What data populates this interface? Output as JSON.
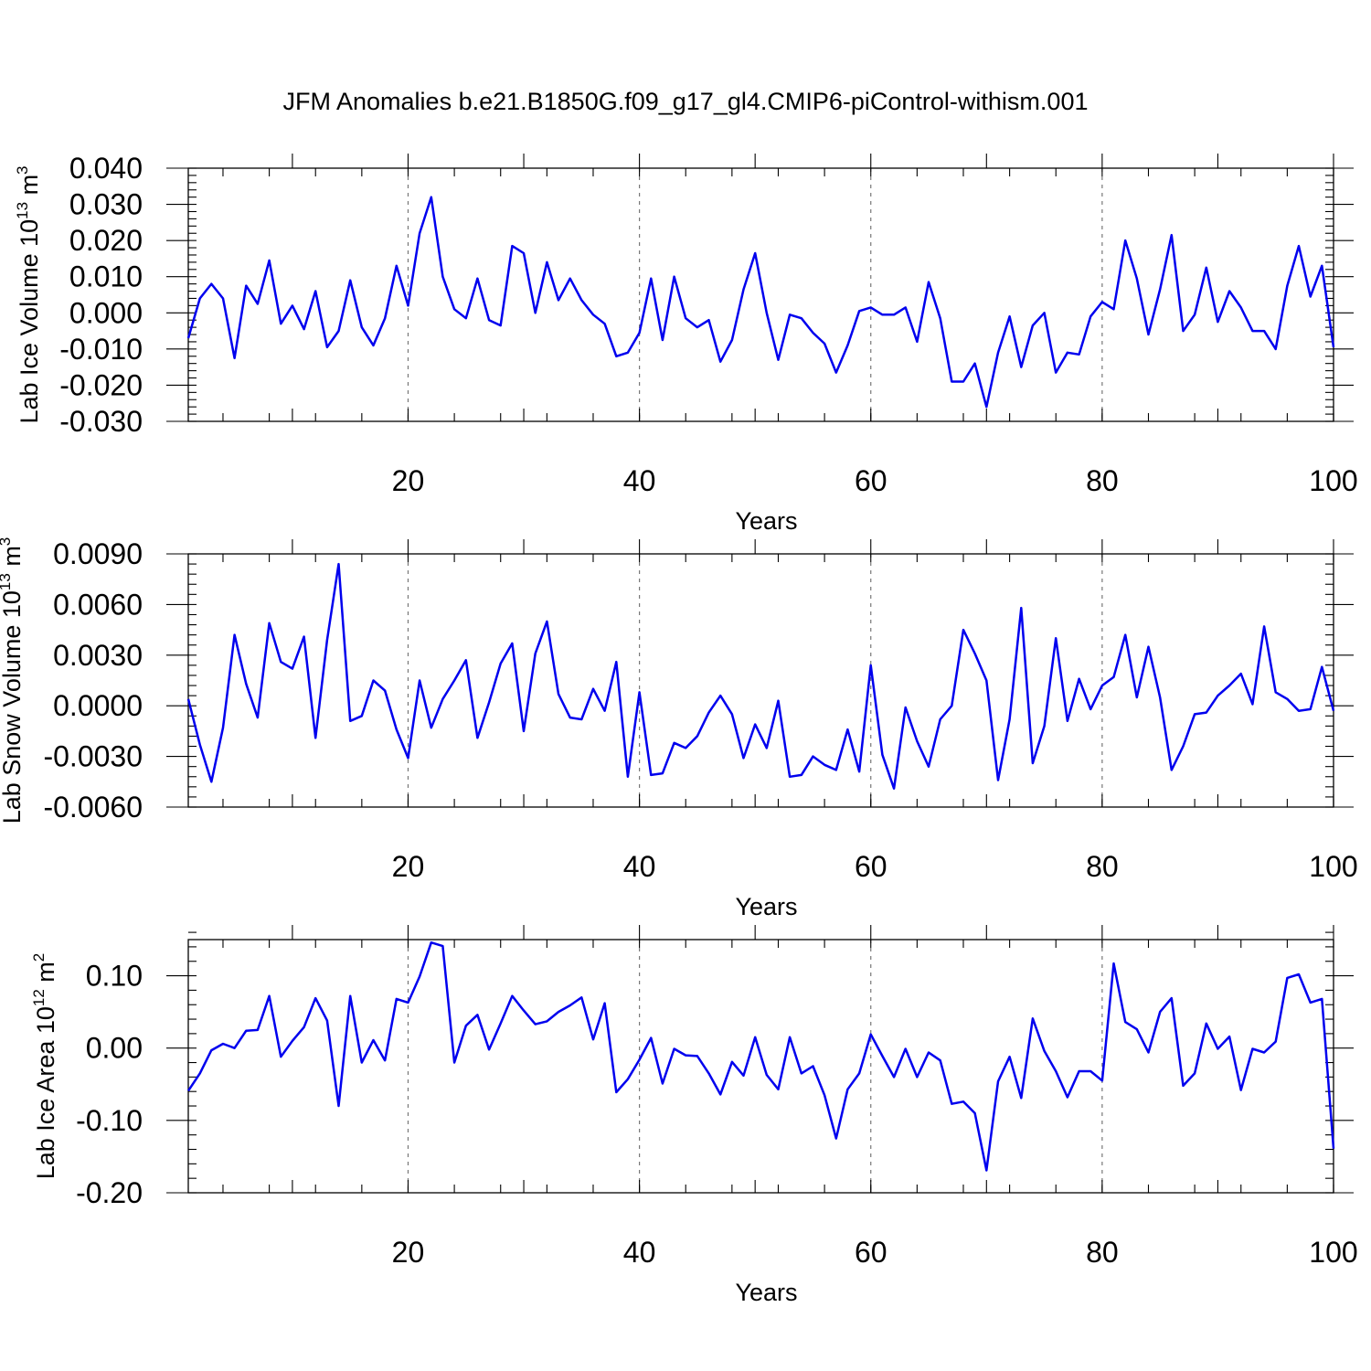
{
  "title": "JFM Anomalies b.e21.B1850G.f09_g17_gl4.CMIP6-piControl-withism.001",
  "colors": {
    "series": "#0000ee",
    "axes": "#000000",
    "grid": "#777777"
  },
  "chart_data": [
    {
      "type": "line",
      "ylabel": {
        "text": "Lab Ice Volume 10",
        "exp": "13",
        "unit": " m",
        "unit_exp": "3"
      },
      "xlabel": "Years",
      "xlim": [
        1,
        100
      ],
      "ylim": [
        -0.03,
        0.04
      ],
      "yticks": [
        -0.03,
        -0.02,
        -0.01,
        0.0,
        0.01,
        0.02,
        0.03,
        0.04
      ],
      "ytick_labels": [
        "-0.030",
        "-0.020",
        "-0.010",
        "0.000",
        "0.010",
        "0.020",
        "0.030",
        "0.040"
      ],
      "ytick_minor_step": 0.002,
      "xticks": [
        20,
        40,
        60,
        80,
        100
      ],
      "xtick_labels": [
        "20",
        "40",
        "60",
        "80",
        "100"
      ],
      "xtick_minor_step": 4,
      "grid_x": [
        20,
        40,
        60,
        80
      ],
      "x_start": 1,
      "values": [
        -0.007,
        0.004,
        0.008,
        0.004,
        -0.0125,
        0.0075,
        0.0025,
        0.0145,
        -0.003,
        0.002,
        -0.0045,
        0.006,
        -0.0095,
        -0.005,
        0.009,
        -0.004,
        -0.009,
        -0.0015,
        0.013,
        0.002,
        0.022,
        0.032,
        0.01,
        0.001,
        -0.0015,
        0.0095,
        -0.002,
        -0.0035,
        0.0185,
        0.0165,
        0.0,
        0.014,
        0.0035,
        0.0095,
        0.0035,
        -0.0005,
        -0.003,
        -0.012,
        -0.011,
        -0.0055,
        0.0095,
        -0.0075,
        0.01,
        -0.0015,
        -0.004,
        -0.002,
        -0.0135,
        -0.0075,
        0.0065,
        0.0165,
        0.0,
        -0.013,
        -0.0005,
        -0.0015,
        -0.0055,
        -0.0085,
        -0.0165,
        -0.009,
        0.0005,
        0.0015,
        -0.0005,
        -0.0005,
        0.0015,
        -0.008,
        0.0085,
        -0.0015,
        -0.019,
        -0.019,
        -0.014,
        -0.026,
        -0.011,
        -0.001,
        -0.015,
        -0.0035,
        0.0,
        -0.0165,
        -0.011,
        -0.0115,
        -0.001,
        0.003,
        0.001,
        0.02,
        0.0095,
        -0.006,
        0.0065,
        0.0215,
        -0.005,
        -0.0005,
        0.0125,
        -0.0025,
        0.006,
        0.0015,
        -0.005,
        -0.005,
        -0.01,
        0.0075,
        0.0185,
        0.0045,
        0.013,
        -0.0095
      ]
    },
    {
      "type": "line",
      "ylabel": {
        "text": "Lab Snow Volume 10",
        "exp": "13",
        "unit": " m",
        "unit_exp": "3"
      },
      "xlabel": "Years",
      "xlim": [
        1,
        100
      ],
      "ylim": [
        -0.006,
        0.009
      ],
      "yticks": [
        -0.006,
        -0.003,
        0.0,
        0.003,
        0.006,
        0.009
      ],
      "ytick_labels": [
        "-0.0060",
        "-0.0030",
        "0.0000",
        "0.0030",
        "0.0060",
        "0.0090"
      ],
      "ytick_minor_step": 0.0006,
      "xticks": [
        20,
        40,
        60,
        80,
        100
      ],
      "xtick_labels": [
        "20",
        "40",
        "60",
        "80",
        "100"
      ],
      "xtick_minor_step": 4,
      "grid_x": [
        20,
        40,
        60,
        80
      ],
      "x_start": 1,
      "values": [
        0.0004,
        -0.0023,
        -0.0045,
        -0.0013,
        0.0042,
        0.0013,
        -0.0007,
        0.0049,
        0.0026,
        0.0022,
        0.0041,
        -0.0019,
        0.0039,
        0.0084,
        -0.0009,
        -0.0006,
        0.0015,
        0.0009,
        -0.0014,
        -0.0031,
        0.0015,
        -0.0013,
        0.0004,
        0.0015,
        0.0027,
        -0.0019,
        0.0002,
        0.0025,
        0.0037,
        -0.0015,
        0.0031,
        0.005,
        0.0007,
        -0.0007,
        -0.0008,
        0.001,
        -0.0003,
        0.0026,
        -0.0042,
        0.0008,
        -0.0041,
        -0.004,
        -0.0022,
        -0.0025,
        -0.0018,
        -0.0004,
        0.0006,
        -0.0005,
        -0.0031,
        -0.0011,
        -0.0025,
        0.0003,
        -0.0042,
        -0.0041,
        -0.003,
        -0.0035,
        -0.0038,
        -0.0014,
        -0.0039,
        0.0024,
        -0.0029,
        -0.0049,
        -0.0001,
        -0.0021,
        -0.0036,
        -0.0008,
        0.0,
        0.0045,
        0.0031,
        0.0015,
        -0.0044,
        -0.0008,
        0.0058,
        -0.0034,
        -0.0012,
        0.004,
        -0.0009,
        0.0016,
        -0.0002,
        0.0012,
        0.0017,
        0.0042,
        0.0005,
        0.0035,
        0.0005,
        -0.0038,
        -0.0024,
        -0.0005,
        -0.0004,
        0.0006,
        0.0012,
        0.0019,
        0.0001,
        0.0047,
        0.0008,
        0.0004,
        -0.0003,
        -0.0002,
        0.0023,
        -0.0003
      ]
    },
    {
      "type": "line",
      "ylabel": {
        "text": "Lab Ice Area 10",
        "exp": "12",
        "unit": " m",
        "unit_exp": "2"
      },
      "xlabel": "Years",
      "xlim": [
        1,
        100
      ],
      "ylim": [
        -0.2,
        0.15
      ],
      "yticks": [
        -0.2,
        -0.1,
        0.0,
        0.1
      ],
      "ytick_labels": [
        "-0.20",
        "-0.10",
        "0.00",
        "0.10"
      ],
      "ytick_minor_step": 0.02,
      "xticks": [
        20,
        40,
        60,
        80,
        100
      ],
      "xtick_labels": [
        "20",
        "40",
        "60",
        "80",
        "100"
      ],
      "xtick_minor_step": 4,
      "grid_x": [
        20,
        40,
        60,
        80
      ],
      "x_start": 1,
      "values": [
        -0.059,
        -0.035,
        -0.003,
        0.006,
        0.0,
        0.024,
        0.025,
        0.072,
        -0.012,
        0.01,
        0.029,
        0.069,
        0.038,
        -0.08,
        0.072,
        -0.02,
        0.011,
        -0.017,
        0.068,
        0.063,
        0.099,
        0.146,
        0.141,
        -0.02,
        0.031,
        0.046,
        -0.002,
        0.034,
        0.072,
        0.052,
        0.033,
        0.037,
        0.05,
        0.059,
        0.07,
        0.012,
        0.062,
        -0.061,
        -0.043,
        -0.016,
        0.014,
        -0.049,
        -0.001,
        -0.01,
        -0.011,
        -0.035,
        -0.064,
        -0.019,
        -0.038,
        0.015,
        -0.037,
        -0.057,
        0.015,
        -0.035,
        -0.025,
        -0.065,
        -0.125,
        -0.057,
        -0.035,
        0.019,
        -0.011,
        -0.04,
        -0.001,
        -0.04,
        -0.006,
        -0.017,
        -0.077,
        -0.074,
        -0.09,
        -0.169,
        -0.046,
        -0.012,
        -0.069,
        0.041,
        -0.004,
        -0.032,
        -0.068,
        -0.032,
        -0.032,
        -0.045,
        0.117,
        0.036,
        0.026,
        -0.006,
        0.05,
        0.069,
        -0.052,
        -0.035,
        0.034,
        -0.001,
        0.016,
        -0.058,
        -0.001,
        -0.006,
        0.009,
        0.097,
        0.102,
        0.063,
        0.068,
        -0.139
      ]
    }
  ]
}
